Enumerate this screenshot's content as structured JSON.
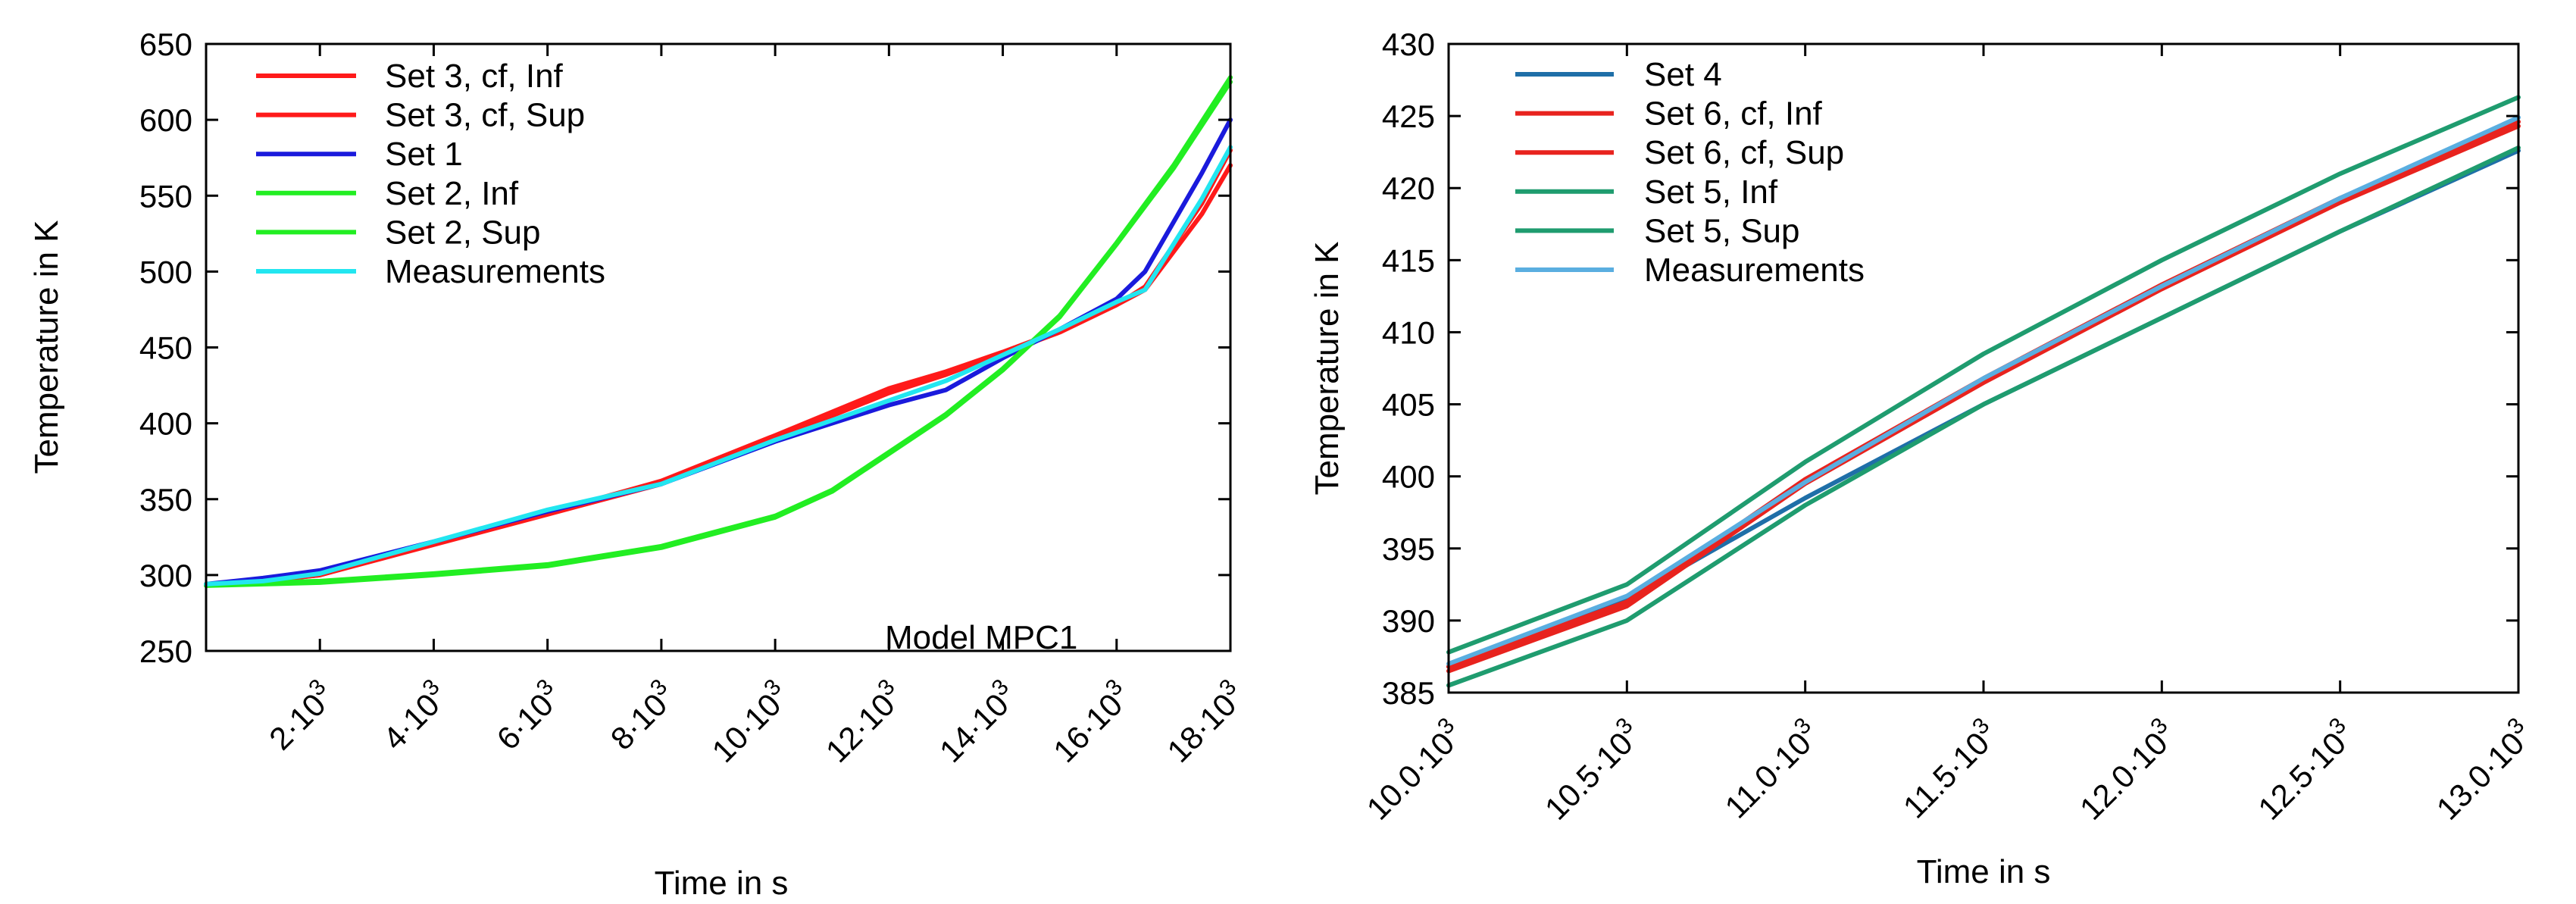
{
  "chart_data": [
    {
      "type": "line",
      "title": "",
      "xlabel": "Time in s",
      "ylabel": "Temperature in K",
      "annotation": "Model MPC1",
      "xlim": [
        0,
        18000
      ],
      "ylim": [
        250,
        650
      ],
      "grid": false,
      "legend_position": "top-left",
      "x_ticks": [
        {
          "value": 2000,
          "mantissa": "2",
          "exp": "3"
        },
        {
          "value": 4000,
          "mantissa": "4",
          "exp": "3"
        },
        {
          "value": 6000,
          "mantissa": "6",
          "exp": "3"
        },
        {
          "value": 8000,
          "mantissa": "8",
          "exp": "3"
        },
        {
          "value": 10000,
          "mantissa": "10",
          "exp": "3"
        },
        {
          "value": 12000,
          "mantissa": "12",
          "exp": "3"
        },
        {
          "value": 14000,
          "mantissa": "14",
          "exp": "3"
        },
        {
          "value": 16000,
          "mantissa": "16",
          "exp": "3"
        },
        {
          "value": 18000,
          "mantissa": "18",
          "exp": "3"
        }
      ],
      "y_ticks": [
        {
          "value": 250,
          "label": "250"
        },
        {
          "value": 300,
          "label": "300"
        },
        {
          "value": 350,
          "label": "350"
        },
        {
          "value": 400,
          "label": "400"
        },
        {
          "value": 450,
          "label": "450"
        },
        {
          "value": 500,
          "label": "500"
        },
        {
          "value": 550,
          "label": "550"
        },
        {
          "value": 600,
          "label": "600"
        },
        {
          "value": 650,
          "label": "650"
        }
      ],
      "series": [
        {
          "name": "Set 3, cf, Inf",
          "color": "#ff1a1a",
          "x": [
            0,
            1000,
            2000,
            4000,
            6000,
            8000,
            10000,
            12000,
            13000,
            14000,
            15000,
            16000,
            16500,
            17500,
            18000
          ],
          "y": [
            294,
            296,
            300,
            320,
            340,
            360,
            390,
            420,
            432,
            446,
            460,
            478,
            488,
            538,
            570
          ]
        },
        {
          "name": "Set 3, cf, Sup",
          "color": "#ff1a1a",
          "x": [
            0,
            1000,
            2000,
            4000,
            6000,
            8000,
            10000,
            12000,
            13000,
            14000,
            15000,
            16000,
            16500,
            17500,
            18000
          ],
          "y": [
            294,
            296,
            300,
            321,
            341,
            362,
            392,
            423,
            434,
            447,
            461,
            478,
            490,
            545,
            580
          ]
        },
        {
          "name": "Set 1",
          "color": "#1a1adc",
          "x": [
            0,
            1000,
            2000,
            4000,
            6000,
            8000,
            10000,
            12000,
            13000,
            14000,
            15000,
            16000,
            16500,
            17500,
            18000
          ],
          "y": [
            294,
            298,
            303,
            322,
            342,
            360,
            388,
            412,
            422,
            443,
            462,
            482,
            500,
            565,
            600
          ]
        },
        {
          "name": "Set 2, Inf",
          "color": "#22ee22",
          "x": [
            0,
            2000,
            4000,
            6000,
            8000,
            10000,
            11000,
            12000,
            13000,
            14000,
            15000,
            16000,
            17000,
            18000
          ],
          "y": [
            293,
            295,
            300,
            306,
            318,
            338,
            355,
            380,
            405,
            435,
            470,
            518,
            568,
            625
          ]
        },
        {
          "name": "Set 2, Sup",
          "color": "#22ee22",
          "x": [
            0,
            2000,
            4000,
            6000,
            8000,
            10000,
            11000,
            12000,
            13000,
            14000,
            15000,
            16000,
            17000,
            18000
          ],
          "y": [
            294,
            296,
            301,
            307,
            319,
            339,
            356,
            381,
            406,
            436,
            471,
            519,
            570,
            628
          ]
        },
        {
          "name": "Measurements",
          "color": "#22e6f0",
          "x": [
            0,
            1000,
            2000,
            4000,
            6000,
            8000,
            10000,
            12000,
            13000,
            14000,
            15000,
            16000,
            16500,
            17500,
            18000
          ],
          "y": [
            294,
            296,
            301,
            322,
            343,
            360,
            389,
            415,
            428,
            445,
            462,
            480,
            488,
            548,
            582
          ]
        }
      ]
    },
    {
      "type": "line",
      "title": "",
      "xlabel": "Time in s",
      "ylabel": "Temperature in K",
      "xlim": [
        10000,
        13000
      ],
      "ylim": [
        385,
        430
      ],
      "grid": false,
      "legend_position": "top-left",
      "x_ticks": [
        {
          "value": 10000,
          "mantissa": "10.0",
          "exp": "3"
        },
        {
          "value": 10500,
          "mantissa": "10.5",
          "exp": "3"
        },
        {
          "value": 11000,
          "mantissa": "11.0",
          "exp": "3"
        },
        {
          "value": 11500,
          "mantissa": "11.5",
          "exp": "3"
        },
        {
          "value": 12000,
          "mantissa": "12.0",
          "exp": "3"
        },
        {
          "value": 12500,
          "mantissa": "12.5",
          "exp": "3"
        },
        {
          "value": 13000,
          "mantissa": "13.0",
          "exp": "3"
        }
      ],
      "y_ticks": [
        {
          "value": 385,
          "label": "385"
        },
        {
          "value": 390,
          "label": "390"
        },
        {
          "value": 395,
          "label": "395"
        },
        {
          "value": 400,
          "label": "400"
        },
        {
          "value": 405,
          "label": "405"
        },
        {
          "value": 410,
          "label": "410"
        },
        {
          "value": 415,
          "label": "415"
        },
        {
          "value": 420,
          "label": "420"
        },
        {
          "value": 425,
          "label": "425"
        },
        {
          "value": 430,
          "label": "430"
        }
      ],
      "series": [
        {
          "name": "Set 4",
          "color": "#1f6fa8",
          "x": [
            10000,
            10500,
            11000,
            11500,
            12000,
            12500,
            13000
          ],
          "y": [
            386.8,
            391.5,
            398.5,
            405.0,
            411.0,
            417.0,
            422.6
          ]
        },
        {
          "name": "Set 6, cf, Inf",
          "color": "#e8231e",
          "x": [
            10000,
            10500,
            11000,
            11500,
            12000,
            12500,
            13000
          ],
          "y": [
            386.5,
            391.0,
            399.5,
            406.5,
            413.0,
            419.0,
            424.3
          ]
        },
        {
          "name": "Set 6, cf, Sup",
          "color": "#e8231e",
          "x": [
            10000,
            10500,
            11000,
            11500,
            12000,
            12500,
            13000
          ],
          "y": [
            386.8,
            391.3,
            399.8,
            406.8,
            413.3,
            419.3,
            424.6
          ]
        },
        {
          "name": "Set 5, Inf",
          "color": "#1f9c6f",
          "x": [
            10000,
            10500,
            11000,
            11500,
            12000,
            12500,
            13000
          ],
          "y": [
            385.5,
            390.0,
            398.0,
            405.0,
            411.0,
            417.0,
            422.8
          ]
        },
        {
          "name": "Set 5, Sup",
          "color": "#1f9c6f",
          "x": [
            10000,
            10500,
            11000,
            11500,
            12000,
            12500,
            13000
          ],
          "y": [
            387.8,
            392.5,
            401.0,
            408.5,
            415.0,
            421.0,
            426.3
          ]
        },
        {
          "name": "Measurements",
          "color": "#5aaee0",
          "x": [
            10000,
            10500,
            11000,
            11500,
            12000,
            12500,
            13000
          ],
          "y": [
            387.0,
            391.7,
            399.6,
            406.8,
            413.2,
            419.3,
            424.9
          ]
        }
      ]
    }
  ]
}
